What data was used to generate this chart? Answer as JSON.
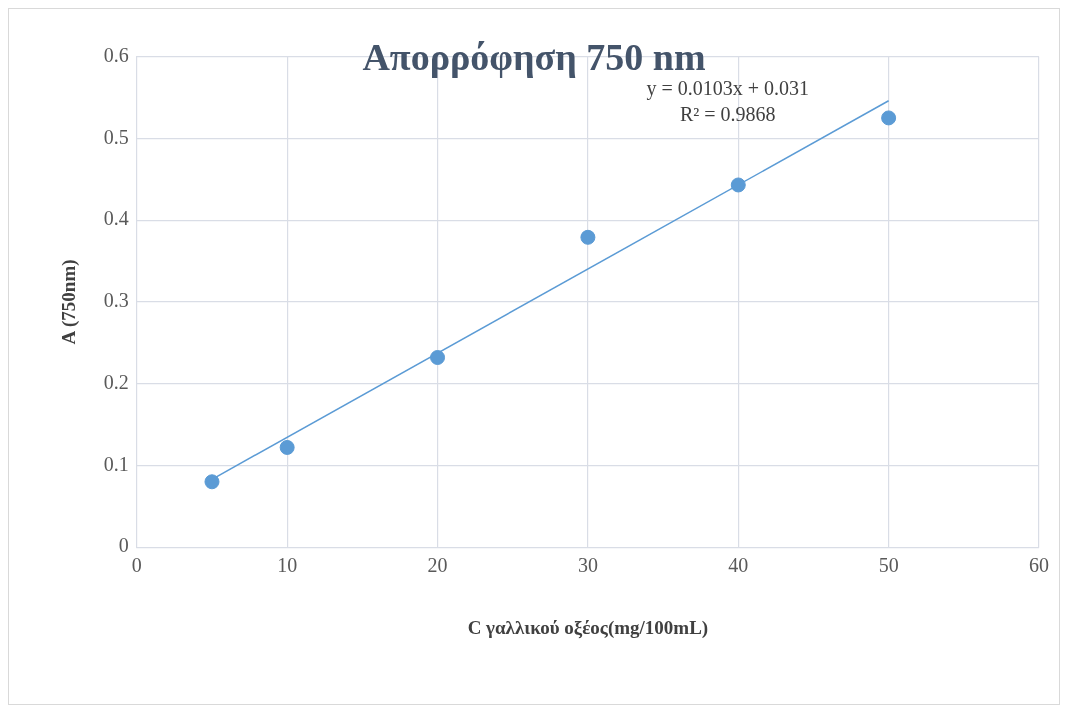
{
  "chart_data": {
    "type": "scatter",
    "title": "Απορρόφηση 750 nm",
    "xlabel": "C γαλλικού οξέος(mg/100mL)",
    "ylabel": "A (750nm)",
    "x": [
      5,
      10,
      20,
      30,
      40,
      50
    ],
    "series": [
      {
        "type": "scatter",
        "color": "#5b9bd5",
        "values": [
          0.08,
          0.122,
          0.232,
          0.379,
          0.443,
          0.525
        ],
        "marker": "circle"
      },
      {
        "type": "line",
        "color": "#5b9bd5",
        "x": [
          5,
          50
        ],
        "values": [
          0.083,
          0.546
        ],
        "marker": "none",
        "line_style": "solid"
      }
    ],
    "xlim": [
      0,
      60
    ],
    "xticks": [
      0,
      10,
      20,
      30,
      40,
      50,
      60
    ],
    "ylim": [
      0,
      0.6
    ],
    "yticks": [
      0,
      0.1,
      0.2,
      0.3,
      0.4,
      0.5,
      0.6
    ],
    "grid": true,
    "legend": false,
    "annotations": [
      "y = 0.0103x + 0.031",
      "R² = 0.9868"
    ]
  }
}
